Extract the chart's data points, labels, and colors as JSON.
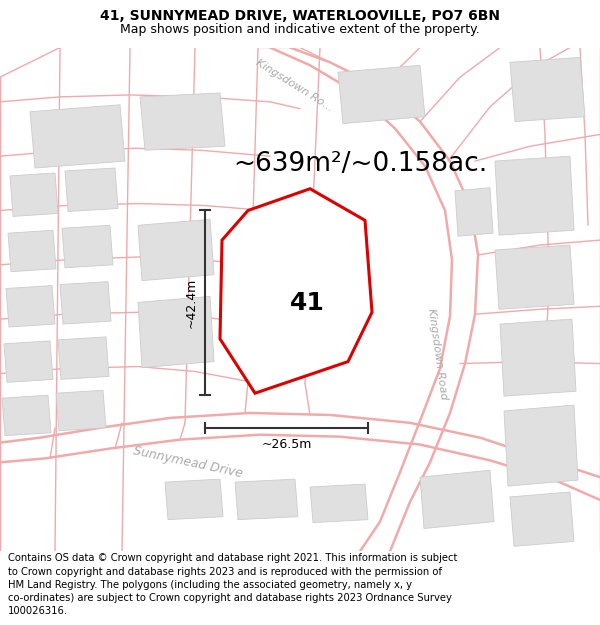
{
  "title_line1": "41, SUNNYMEAD DRIVE, WATERLOOVILLE, PO7 6BN",
  "title_line2": "Map shows position and indicative extent of the property.",
  "area_text": "~639m²/~0.158ac.",
  "number_label": "41",
  "dim_vertical": "~42.4m",
  "dim_horizontal": "~26.5m",
  "footer_text": "Contains OS data © Crown copyright and database right 2021. This information is subject\nto Crown copyright and database rights 2023 and is reproduced with the permission of\nHM Land Registry. The polygons (including the associated geometry, namely x, y\nco-ordinates) are subject to Crown copyright and database rights 2023 Ordnance Survey\n100026316.",
  "map_bg": "#f9f9f9",
  "road_line_color": "#f0aaaa",
  "road_line_color2": "#dddddd",
  "building_color": "#e0e0e0",
  "building_edge": "#cccccc",
  "property_fill": "#ffffff",
  "property_line_color": "#dd0000",
  "dim_line_color": "#333333",
  "text_road_color": "#aaaaaa",
  "title_fontsize": 10,
  "subtitle_fontsize": 9,
  "area_fontsize": 19,
  "number_fontsize": 18,
  "road_label_fontsize": 8,
  "footer_fontsize": 7.2
}
